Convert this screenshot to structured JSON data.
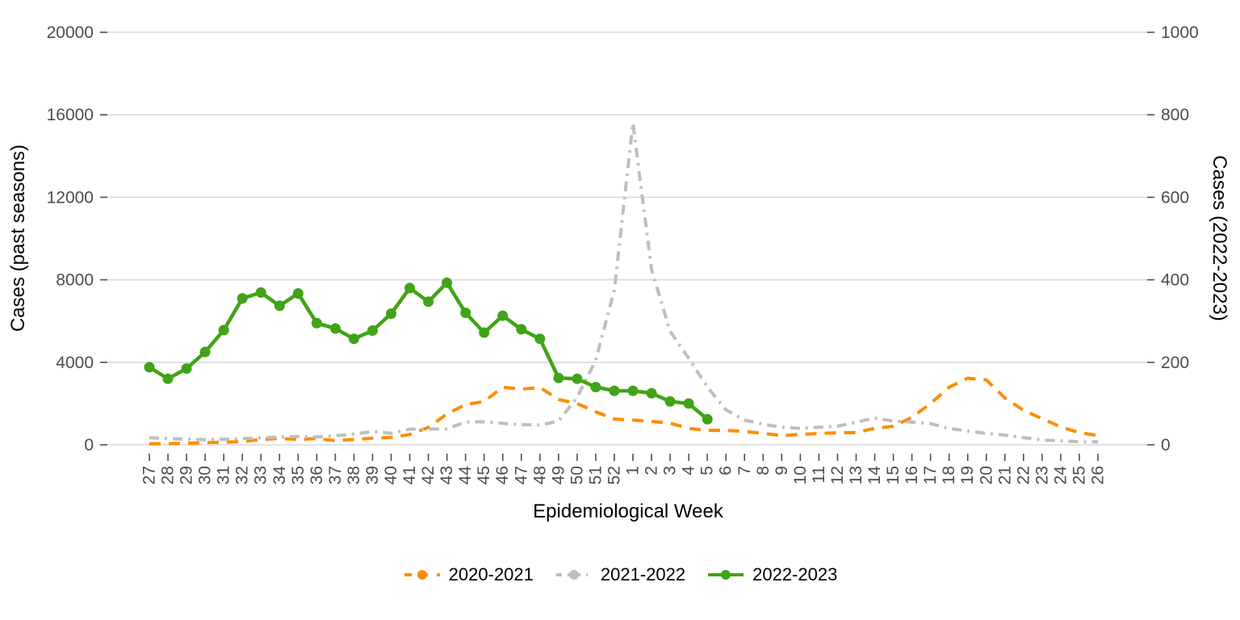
{
  "chart_data": {
    "type": "line",
    "title": "",
    "x_axis": {
      "label": "Epidemiological Week"
    },
    "left_axis": {
      "label": "Cases (past seasons)",
      "range": [
        0,
        20000
      ],
      "ticks": [
        0,
        4000,
        8000,
        12000,
        16000,
        20000
      ]
    },
    "right_axis": {
      "label": "Cases (2022-2023)",
      "range": [
        0,
        1000
      ],
      "ticks": [
        0,
        200,
        400,
        600,
        800,
        1000
      ]
    },
    "grid": "horizontal-only",
    "legend_position": "bottom",
    "colors": {
      "grid": "#d9d9d9",
      "tick": "#4d4d4d",
      "tick_label": "#4d4d4d",
      "axis_title": "#000000",
      "background": "#ffffff"
    },
    "x_categories": [
      "27",
      "28",
      "29",
      "30",
      "31",
      "32",
      "33",
      "34",
      "35",
      "36",
      "37",
      "38",
      "39",
      "40",
      "41",
      "42",
      "43",
      "44",
      "45",
      "46",
      "47",
      "48",
      "49",
      "50",
      "51",
      "52",
      "1",
      "2",
      "3",
      "4",
      "5",
      "6",
      "7",
      "8",
      "9",
      "10",
      "11",
      "12",
      "13",
      "14",
      "15",
      "16",
      "17",
      "18",
      "19",
      "20",
      "21",
      "22",
      "23",
      "24",
      "25",
      "26"
    ],
    "series": [
      {
        "name": "2020-2021",
        "color": "#ff8c00",
        "line_style": "dashed",
        "axis": "left",
        "marker": false,
        "values": [
          50,
          60,
          80,
          100,
          130,
          160,
          260,
          310,
          260,
          310,
          200,
          260,
          320,
          360,
          500,
          840,
          1500,
          1950,
          2100,
          2790,
          2700,
          2780,
          2200,
          2000,
          1600,
          1250,
          1200,
          1130,
          1050,
          800,
          700,
          700,
          650,
          550,
          450,
          500,
          550,
          580,
          600,
          800,
          900,
          1330,
          2000,
          2790,
          3230,
          3150,
          2270,
          1670,
          1270,
          870,
          590,
          450
        ]
      },
      {
        "name": "2021-2022",
        "color": "#bebebe",
        "line_style": "dashdot",
        "axis": "left",
        "marker": false,
        "values": [
          350,
          300,
          270,
          250,
          270,
          300,
          340,
          380,
          400,
          380,
          440,
          520,
          640,
          560,
          760,
          760,
          780,
          1100,
          1120,
          1040,
          980,
          960,
          1150,
          2300,
          4100,
          7500,
          15600,
          8500,
          5500,
          4200,
          2800,
          1700,
          1200,
          1000,
          850,
          800,
          850,
          900,
          1100,
          1300,
          1150,
          1100,
          1030,
          790,
          670,
          550,
          470,
          350,
          230,
          190,
          150,
          150
        ]
      },
      {
        "name": "2022-2023",
        "color": "#41a317",
        "line_style": "solid",
        "axis": "right",
        "marker": true,
        "values": [
          188,
          160,
          185,
          225,
          278,
          355,
          369,
          337,
          367,
          295,
          282,
          257,
          277,
          318,
          380,
          347,
          393,
          320,
          272,
          313,
          280,
          257,
          162,
          160,
          140,
          131,
          131,
          125,
          105,
          100,
          62,
          null,
          null,
          null,
          null,
          null,
          null,
          null,
          null,
          null,
          null,
          null,
          null,
          null,
          null,
          null,
          null,
          null,
          null,
          null,
          null,
          null
        ]
      }
    ]
  }
}
